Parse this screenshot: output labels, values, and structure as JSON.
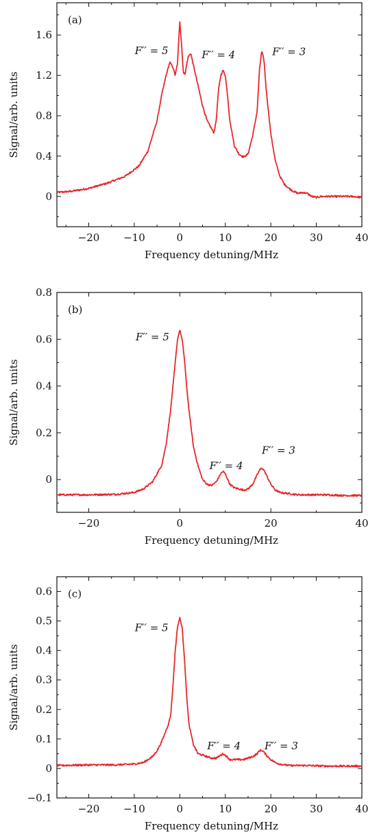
{
  "chart_data": [
    {
      "type": "line",
      "panel_label": "(a)",
      "xlabel": "Frequency detuning/MHz",
      "ylabel": "Signal/arb. units",
      "xlim": [
        -27,
        40
      ],
      "ylim": [
        -0.3,
        1.92
      ],
      "x_ticks": [
        -20,
        -10,
        0,
        10,
        20,
        30,
        40
      ],
      "x_tick_labels": [
        "−20",
        "−10",
        "0",
        "10",
        "20",
        "30",
        "40"
      ],
      "y_ticks": [
        0,
        0.4,
        0.8,
        1.2,
        1.6
      ],
      "y_tick_labels": [
        "0",
        "0.4",
        "0.8",
        "1.2",
        "1.6"
      ],
      "series": [
        {
          "color": "#e8262a",
          "x": [
            -27,
            -24,
            -20,
            -16,
            -12,
            -9,
            -7,
            -5,
            -4,
            -3,
            -2.2,
            -1.5,
            -1.0,
            -0.5,
            0,
            0.4,
            0.8,
            1.2,
            1.8,
            2.4,
            3,
            4,
            5,
            6,
            7,
            7.5,
            8,
            8.5,
            9,
            9.5,
            10,
            10.5,
            11,
            12,
            13,
            14,
            15,
            16,
            16.5,
            17,
            17.5,
            18,
            18.5,
            19,
            20,
            21,
            22,
            23,
            24,
            25,
            26,
            27,
            28,
            29,
            30,
            31,
            32,
            35,
            38,
            40
          ],
          "y": [
            0.04,
            0.05,
            0.08,
            0.13,
            0.2,
            0.3,
            0.45,
            0.75,
            1.0,
            1.2,
            1.33,
            1.28,
            1.2,
            1.32,
            1.74,
            1.5,
            1.22,
            1.22,
            1.38,
            1.42,
            1.3,
            1.1,
            0.9,
            0.75,
            0.67,
            0.63,
            0.75,
            1.05,
            1.2,
            1.25,
            1.2,
            1.0,
            0.75,
            0.5,
            0.42,
            0.39,
            0.42,
            0.6,
            0.72,
            0.85,
            1.25,
            1.44,
            1.35,
            1.05,
            0.62,
            0.35,
            0.2,
            0.12,
            0.08,
            0.05,
            0.03,
            0.04,
            0.03,
            0.0,
            -0.01,
            0.0,
            0.0,
            0.0,
            0.0,
            -0.01
          ]
        }
      ],
      "annotations": [
        {
          "text": "F′′ = 5",
          "x": -6.2,
          "y": 1.41
        },
        {
          "text": "F′′ = 4",
          "x": 8.5,
          "y": 1.37
        },
        {
          "text": "F′′ = 3",
          "x": 24.0,
          "y": 1.4
        }
      ]
    },
    {
      "type": "line",
      "panel_label": "(b)",
      "xlabel": "Frequency detuning/MHz",
      "ylabel": "Signal/arb. units",
      "xlim": [
        -27,
        40
      ],
      "ylim": [
        -0.14,
        0.8
      ],
      "x_ticks": [
        -20,
        0,
        20,
        40
      ],
      "x_tick_labels": [
        "−20",
        "0",
        "20",
        "40"
      ],
      "y_ticks": [
        0,
        0.2,
        0.4,
        0.6,
        0.8
      ],
      "y_tick_labels": [
        "0",
        "0.2",
        "0.4",
        "0.6",
        "0.8"
      ],
      "series": [
        {
          "color": "#e8262a",
          "x": [
            -27,
            -20,
            -14,
            -10,
            -8,
            -6,
            -4,
            -3,
            -2,
            -1.5,
            -1,
            -0.5,
            0,
            0.5,
            1,
            1.5,
            2,
            3,
            4,
            5,
            6,
            7,
            8,
            9,
            9.5,
            10,
            11,
            12,
            13,
            14,
            15,
            16,
            17,
            17.5,
            18,
            18.5,
            19,
            20,
            21,
            22,
            24,
            26,
            28,
            32,
            36,
            40
          ],
          "y": [
            -0.065,
            -0.065,
            -0.063,
            -0.055,
            -0.04,
            -0.01,
            0.06,
            0.15,
            0.3,
            0.4,
            0.5,
            0.6,
            0.64,
            0.6,
            0.52,
            0.4,
            0.3,
            0.14,
            0.06,
            0.0,
            -0.02,
            -0.025,
            -0.01,
            0.025,
            0.035,
            0.025,
            -0.02,
            -0.035,
            -0.04,
            -0.045,
            -0.04,
            -0.02,
            0.02,
            0.04,
            0.05,
            0.04,
            0.02,
            -0.02,
            -0.045,
            -0.055,
            -0.06,
            -0.065,
            -0.065,
            -0.065,
            -0.068,
            -0.068
          ]
        }
      ],
      "annotations": [
        {
          "text": "F′′ = 5",
          "x": -6.0,
          "y": 0.595
        },
        {
          "text": "F′′ = 4",
          "x": 10.2,
          "y": 0.045
        },
        {
          "text": "F′′ = 3",
          "x": 21.7,
          "y": 0.11
        }
      ]
    },
    {
      "type": "line",
      "panel_label": "(c)",
      "xlabel": "Frequency detuning/MHz",
      "ylabel": "Signal/arb. units",
      "xlim": [
        -27,
        40
      ],
      "ylim": [
        -0.1,
        0.65
      ],
      "x_ticks": [
        -20,
        -10,
        0,
        10,
        20,
        30,
        40
      ],
      "x_tick_labels": [
        "−20",
        "−10",
        "0",
        "10",
        "20",
        "30",
        "40"
      ],
      "y_ticks": [
        -0.1,
        0,
        0.1,
        0.2,
        0.3,
        0.4,
        0.5,
        0.6
      ],
      "y_tick_labels": [
        "−0.1",
        "0",
        "0.1",
        "0.2",
        "0.3",
        "0.4",
        "0.5",
        "0.6"
      ],
      "series": [
        {
          "color": "#e8262a",
          "x": [
            -27,
            -20,
            -14,
            -10,
            -8,
            -6,
            -5,
            -4,
            -3,
            -2.5,
            -2,
            -1.5,
            -1,
            -0.5,
            0,
            0.5,
            1,
            1.5,
            2,
            3,
            4,
            5,
            6,
            7,
            8,
            9,
            9.5,
            10,
            11,
            12,
            13,
            14,
            15,
            16,
            17,
            17.5,
            18,
            18.5,
            19,
            20,
            21,
            22,
            24,
            26,
            28,
            32,
            36,
            40
          ],
          "y": [
            0.01,
            0.012,
            0.012,
            0.015,
            0.02,
            0.04,
            0.06,
            0.09,
            0.13,
            0.15,
            0.18,
            0.28,
            0.4,
            0.48,
            0.51,
            0.48,
            0.38,
            0.25,
            0.15,
            0.08,
            0.05,
            0.045,
            0.04,
            0.035,
            0.035,
            0.045,
            0.05,
            0.045,
            0.03,
            0.03,
            0.03,
            0.03,
            0.035,
            0.04,
            0.05,
            0.06,
            0.062,
            0.055,
            0.045,
            0.03,
            0.02,
            0.015,
            0.01,
            0.01,
            0.01,
            0.008,
            0.008,
            0.008
          ]
        }
      ],
      "annotations": [
        {
          "text": "F′′ = 5",
          "x": -6.2,
          "y": 0.465
        },
        {
          "text": "F′′ = 4",
          "x": 9.7,
          "y": 0.065
        },
        {
          "text": "F′′ = 3",
          "x": 22.3,
          "y": 0.065
        }
      ]
    }
  ]
}
